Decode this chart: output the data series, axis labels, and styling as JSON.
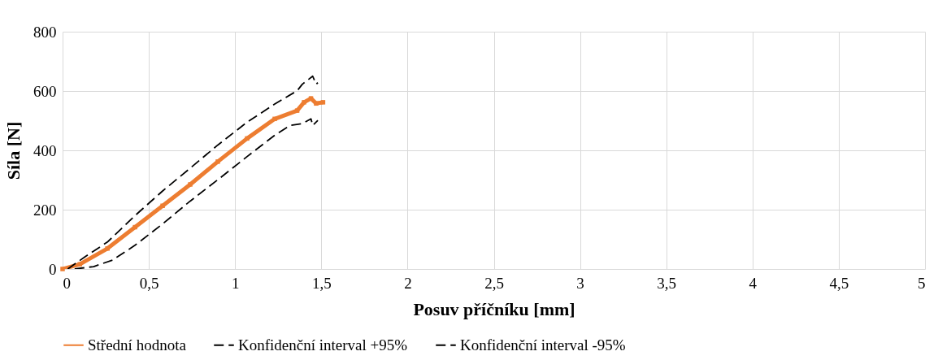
{
  "chart_data": {
    "type": "line",
    "xlabel": "Posuv příčníku [mm]",
    "ylabel": "Síla [N]",
    "xlim": [
      0,
      5
    ],
    "xticks": [
      0,
      {
        "value": 0.5,
        "label": "0,5"
      },
      1,
      {
        "value": 1.5,
        "label": "1,5"
      },
      2,
      {
        "value": 2.5,
        "label": "2,5"
      },
      3,
      {
        "value": 3.5,
        "label": "3,5"
      },
      4,
      {
        "value": 4.5,
        "label": "4,5"
      },
      5
    ],
    "ylim": [
      0,
      800
    ],
    "yticks": [
      0,
      200,
      400,
      600,
      800
    ],
    "grid": true,
    "legend": "bottom",
    "series": [
      {
        "name": "Střední hodnota",
        "color": "#ed7d31",
        "marker": "square",
        "line_style": "solid",
        "x": [
          0,
          0.1,
          0.26,
          0.42,
          0.58,
          0.74,
          0.9,
          1.07,
          1.23,
          1.36,
          1.4,
          1.44,
          1.47,
          1.51
        ],
        "values": [
          0,
          16,
          69,
          141,
          213,
          285,
          362,
          440,
          506,
          534,
          562,
          575,
          558,
          562
        ]
      },
      {
        "name": "Konfidenční interval +95%",
        "color": "#000000",
        "line_style": "dashed",
        "x": [
          0.03,
          0.13,
          0.26,
          0.42,
          0.58,
          0.74,
          0.9,
          1.07,
          1.23,
          1.36,
          1.39,
          1.45,
          1.47,
          1.48
        ],
        "values": [
          0,
          41,
          91,
          180,
          263,
          340,
          418,
          495,
          556,
          601,
          623,
          650,
          623,
          628
        ]
      },
      {
        "name": "Konfidenční interval -95%",
        "color": "#000000",
        "line_style": "dashed",
        "x": [
          0.07,
          0.18,
          0.29,
          0.42,
          0.58,
          0.74,
          0.9,
          1.07,
          1.23,
          1.32,
          1.39,
          1.44,
          1.45,
          1.48
        ],
        "values": [
          0,
          8,
          30,
          80,
          152,
          229,
          301,
          379,
          451,
          484,
          490,
          506,
          484,
          501
        ]
      }
    ]
  }
}
